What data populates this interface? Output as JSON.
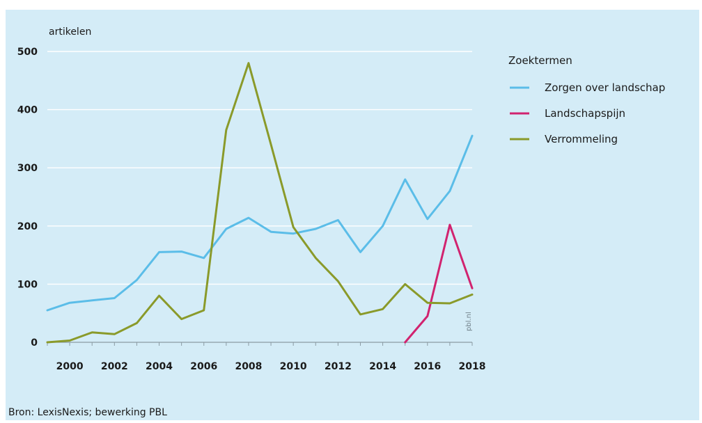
{
  "chart_data": {
    "type": "line",
    "ylabel": "artikelen",
    "ylim": [
      0,
      500
    ],
    "yticks": [
      0,
      100,
      200,
      300,
      400,
      500
    ],
    "xlim": [
      1999,
      2018
    ],
    "xticks": [
      2000,
      2002,
      2004,
      2006,
      2008,
      2010,
      2012,
      2014,
      2016,
      2018
    ],
    "grid": true,
    "legend_title": "Zoektermen",
    "legend_position": "right",
    "series": [
      {
        "name": "Zorgen over landschap",
        "color": "#5bbde8",
        "x": [
          1999,
          2000,
          2001,
          2002,
          2003,
          2004,
          2005,
          2006,
          2007,
          2008,
          2009,
          2010,
          2011,
          2012,
          2013,
          2014,
          2015,
          2016,
          2017,
          2018
        ],
        "values": [
          55,
          68,
          72,
          76,
          107,
          155,
          156,
          145,
          195,
          214,
          190,
          187,
          195,
          210,
          155,
          200,
          280,
          212,
          260,
          355
        ]
      },
      {
        "name": "Landschapspijn",
        "color": "#d1236f",
        "x": [
          2015,
          2016,
          2017,
          2018
        ],
        "values": [
          0,
          45,
          202,
          93
        ]
      },
      {
        "name": "Verrommeling",
        "color": "#8a9a2a",
        "x": [
          1999,
          2000,
          2001,
          2002,
          2003,
          2004,
          2005,
          2006,
          2007,
          2008,
          2009,
          2010,
          2011,
          2012,
          2013,
          2014,
          2015,
          2016,
          2017,
          2018
        ],
        "values": [
          0,
          3,
          17,
          14,
          33,
          80,
          40,
          55,
          365,
          480,
          340,
          198,
          145,
          105,
          48,
          57,
          100,
          68,
          67,
          82
        ]
      }
    ],
    "source": "Bron: LexisNexis; bewerking PBL",
    "watermark": "pbl.nl"
  }
}
